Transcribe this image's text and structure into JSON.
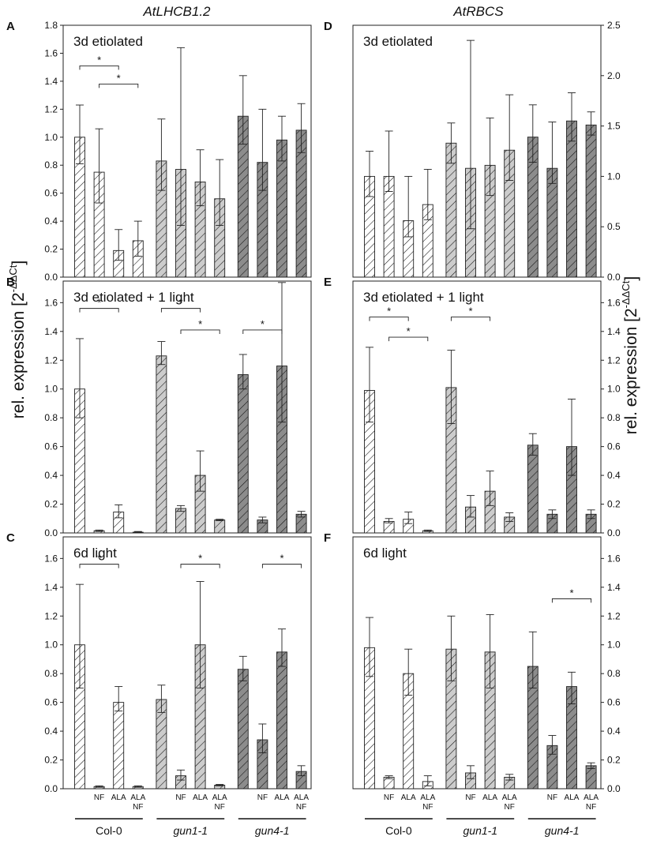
{
  "figure": {
    "gene_left": "AtLHCB1.2",
    "gene_right": "AtRBCS",
    "ylabel_left_main": "rel. expression [2",
    "ylabel_right_main": "rel. expression [2",
    "ylabel_sup": "-ΔΔCt",
    "ylabel_close": "]",
    "groups": [
      "Col-0",
      "gun1-1",
      "gun4-1"
    ],
    "treatments": [
      {
        "line1": "",
        "line2": ""
      },
      {
        "line1": "NF",
        "line2": ""
      },
      {
        "line1": "ALA",
        "line2": ""
      },
      {
        "line1": "ALA",
        "line2": "NF"
      }
    ],
    "significance_marker": "*"
  },
  "colors": {
    "col0": "#ffffff",
    "gun1": "#cccccc",
    "gun4": "#8c8c8c",
    "axis": "#222222"
  },
  "chart_data": [
    {
      "id": "A",
      "letter": "A",
      "title": "3d etiolated",
      "type": "bar",
      "ylim": [
        0,
        1.8
      ],
      "ticks": [
        "0.0",
        "0.2",
        "0.4",
        "0.6",
        "0.8",
        "1.0",
        "1.2",
        "1.4",
        "1.6",
        "1.8"
      ],
      "categories": [
        "Col-0",
        "Col-0 NF",
        "Col-0 ALA",
        "Col-0 ALA NF",
        "gun1-1",
        "gun1-1 NF",
        "gun1-1 ALA",
        "gun1-1 ALA NF",
        "gun4-1",
        "gun4-1 NF",
        "gun4-1 ALA",
        "gun4-1 ALA NF"
      ],
      "values": [
        1.0,
        0.75,
        0.19,
        0.26,
        0.83,
        0.77,
        0.68,
        0.56,
        1.15,
        0.82,
        0.98,
        1.05
      ],
      "err_low": [
        0.19,
        0.22,
        0.07,
        0.11,
        0.21,
        0.4,
        0.17,
        0.19,
        0.2,
        0.2,
        0.15,
        0.16
      ],
      "err_high": [
        0.23,
        0.31,
        0.15,
        0.14,
        0.3,
        0.87,
        0.23,
        0.28,
        0.29,
        0.38,
        0.17,
        0.19
      ],
      "significance": [
        {
          "from": 0,
          "to": 2,
          "y": 1.51,
          "label": "*"
        },
        {
          "from": 1,
          "to": 3,
          "y": 1.38,
          "label": "*"
        }
      ]
    },
    {
      "id": "B",
      "letter": "B",
      "title": "3d etiolated + 1 light",
      "type": "bar",
      "ylim": [
        0,
        1.75
      ],
      "ticks": [
        "0.0",
        "0.2",
        "0.4",
        "0.6",
        "0.8",
        "1.0",
        "1.2",
        "1.4",
        "1.6"
      ],
      "categories": [
        "Col-0",
        "Col-0 NF",
        "Col-0 ALA",
        "Col-0 ALA NF",
        "gun1-1",
        "gun1-1 NF",
        "gun1-1 ALA",
        "gun1-1 ALA NF",
        "gun4-1",
        "gun4-1 NF",
        "gun4-1 ALA",
        "gun4-1 ALA NF"
      ],
      "values": [
        1.0,
        0.015,
        0.145,
        0.005,
        1.23,
        0.17,
        0.4,
        0.09,
        1.1,
        0.09,
        1.16,
        0.13
      ],
      "err_low": [
        0.2,
        0.005,
        0.04,
        0.0,
        0.06,
        0.02,
        0.11,
        0.005,
        0.1,
        0.02,
        0.39,
        0.02
      ],
      "err_high": [
        0.35,
        0.005,
        0.05,
        0.005,
        0.1,
        0.02,
        0.17,
        0.005,
        0.14,
        0.02,
        0.58,
        0.02
      ],
      "significance": [
        {
          "from": 0,
          "to": 2,
          "y": 1.56,
          "label": "*"
        },
        {
          "from": 4,
          "to": 6,
          "y": 1.56,
          "label": "*"
        },
        {
          "from": 5,
          "to": 7,
          "y": 1.41,
          "label": "*"
        },
        {
          "from": 8,
          "to": 10,
          "y": 1.41,
          "label": "*"
        }
      ]
    },
    {
      "id": "C",
      "letter": "C",
      "title": "6d light",
      "type": "bar",
      "ylim": [
        0,
        1.75
      ],
      "ticks": [
        "0.0",
        "0.2",
        "0.4",
        "0.6",
        "0.8",
        "1.0",
        "1.2",
        "1.4",
        "1.6"
      ],
      "categories": [
        "Col-0",
        "Col-0 NF",
        "Col-0 ALA",
        "Col-0 ALA NF",
        "gun1-1",
        "gun1-1 NF",
        "gun1-1 ALA",
        "gun1-1 ALA NF",
        "gun4-1",
        "gun4-1 NF",
        "gun4-1 ALA",
        "gun4-1 ALA NF"
      ],
      "values": [
        1.0,
        0.015,
        0.6,
        0.015,
        0.62,
        0.09,
        1.0,
        0.025,
        0.83,
        0.34,
        0.95,
        0.12
      ],
      "err_low": [
        0.3,
        0.005,
        0.06,
        0.005,
        0.09,
        0.03,
        0.3,
        0.005,
        0.08,
        0.09,
        0.1,
        0.03
      ],
      "err_high": [
        0.42,
        0.005,
        0.11,
        0.005,
        0.1,
        0.04,
        0.44,
        0.005,
        0.09,
        0.11,
        0.16,
        0.04
      ],
      "significance": [
        {
          "from": 0,
          "to": 2,
          "y": 1.56,
          "label": "*"
        },
        {
          "from": 5,
          "to": 7,
          "y": 1.56,
          "label": "*"
        },
        {
          "from": 9,
          "to": 11,
          "y": 1.56,
          "label": "*"
        }
      ]
    },
    {
      "id": "D",
      "letter": "D",
      "title": "3d etiolated",
      "type": "bar",
      "ylim": [
        0,
        2.5
      ],
      "ticks": [
        "0.0",
        "0.5",
        "1.0",
        "1.5",
        "2.0",
        "2.5"
      ],
      "categories": [
        "Col-0",
        "Col-0 NF",
        "Col-0 ALA",
        "Col-0 ALA NF",
        "gun1-1",
        "gun1-1 NF",
        "gun1-1 ALA",
        "gun1-1 ALA NF",
        "gun4-1",
        "gun4-1 NF",
        "gun4-1 ALA",
        "gun4-1 ALA NF"
      ],
      "values": [
        1.0,
        1.0,
        0.56,
        0.72,
        1.33,
        1.08,
        1.11,
        1.26,
        1.39,
        1.08,
        1.55,
        1.51
      ],
      "err_low": [
        0.2,
        0.15,
        0.16,
        0.15,
        0.2,
        0.6,
        0.3,
        0.3,
        0.25,
        0.15,
        0.2,
        0.1
      ],
      "err_high": [
        0.25,
        0.45,
        0.44,
        0.35,
        0.2,
        1.27,
        0.47,
        0.55,
        0.32,
        0.46,
        0.28,
        0.13
      ],
      "significance": []
    },
    {
      "id": "E",
      "letter": "E",
      "title": "3d etiolated + 1 light",
      "type": "bar",
      "ylim": [
        0,
        1.75
      ],
      "ticks": [
        "0.0",
        "0.2",
        "0.4",
        "0.6",
        "0.8",
        "1.0",
        "1.2",
        "1.4",
        "1.6"
      ],
      "categories": [
        "Col-0",
        "Col-0 NF",
        "Col-0 ALA",
        "Col-0 ALA NF",
        "gun1-1",
        "gun1-1 NF",
        "gun1-1 ALA",
        "gun1-1 ALA NF",
        "gun4-1",
        "gun4-1 NF",
        "gun4-1 ALA",
        "gun4-1 ALA NF"
      ],
      "values": [
        0.99,
        0.08,
        0.095,
        0.015,
        1.01,
        0.18,
        0.29,
        0.11,
        0.61,
        0.13,
        0.6,
        0.13
      ],
      "err_low": [
        0.22,
        0.01,
        0.03,
        0.005,
        0.25,
        0.07,
        0.1,
        0.03,
        0.07,
        0.03,
        0.2,
        0.03
      ],
      "err_high": [
        0.3,
        0.02,
        0.05,
        0.005,
        0.26,
        0.08,
        0.14,
        0.03,
        0.08,
        0.03,
        0.33,
        0.03
      ],
      "significance": [
        {
          "from": 0,
          "to": 2,
          "y": 1.5,
          "label": "*"
        },
        {
          "from": 1,
          "to": 3,
          "y": 1.36,
          "label": "*"
        },
        {
          "from": 4,
          "to": 6,
          "y": 1.5,
          "label": "*"
        }
      ]
    },
    {
      "id": "F",
      "letter": "F",
      "title": "6d light",
      "type": "bar",
      "ylim": [
        0,
        1.75
      ],
      "ticks": [
        "0.0",
        "0.2",
        "0.4",
        "0.6",
        "0.8",
        "1.0",
        "1.2",
        "1.4",
        "1.6"
      ],
      "categories": [
        "Col-0",
        "Col-0 NF",
        "Col-0 ALA",
        "Col-0 ALA NF",
        "gun1-1",
        "gun1-1 NF",
        "gun1-1 ALA",
        "gun1-1 ALA NF",
        "gun4-1",
        "gun4-1 NF",
        "gun4-1 ALA",
        "gun4-1 ALA NF"
      ],
      "values": [
        0.98,
        0.08,
        0.8,
        0.05,
        0.97,
        0.11,
        0.95,
        0.08,
        0.85,
        0.3,
        0.71,
        0.16
      ],
      "err_low": [
        0.2,
        0.01,
        0.15,
        0.03,
        0.22,
        0.04,
        0.25,
        0.02,
        0.15,
        0.06,
        0.12,
        0.02
      ],
      "err_high": [
        0.21,
        0.01,
        0.17,
        0.04,
        0.23,
        0.05,
        0.26,
        0.02,
        0.24,
        0.07,
        0.1,
        0.02
      ],
      "significance": [
        {
          "from": 9,
          "to": 11,
          "y": 1.32,
          "label": "*"
        }
      ]
    }
  ]
}
